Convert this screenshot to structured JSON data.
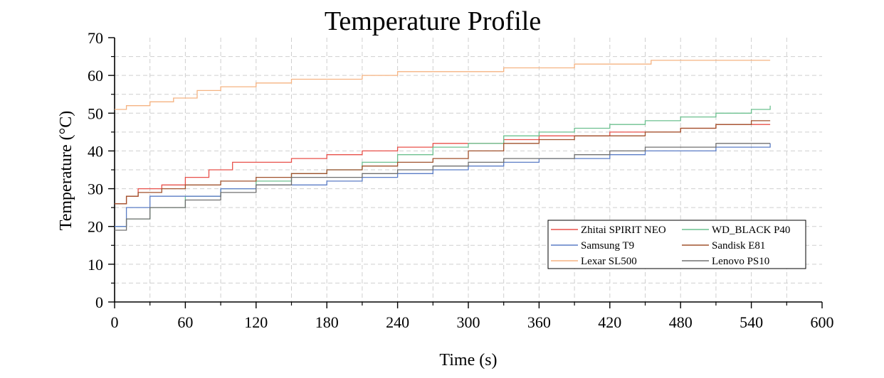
{
  "chart_data": {
    "type": "line",
    "title": "Temperature Profile",
    "xlabel": "Time (s)",
    "ylabel": "Temperature (°C)",
    "xlim": [
      0,
      600
    ],
    "ylim": [
      0,
      70
    ],
    "xticks": [
      0,
      60,
      120,
      180,
      240,
      300,
      360,
      420,
      480,
      540,
      600
    ],
    "yticks": [
      0,
      10,
      20,
      30,
      40,
      50,
      60,
      70
    ],
    "grid": true,
    "legend_position": "bottom-right",
    "series": [
      {
        "name": "Zhitai SPIRIT NEO",
        "color": "#e8504a",
        "x": [
          0,
          10,
          20,
          40,
          60,
          80,
          100,
          120,
          150,
          180,
          210,
          240,
          270,
          300,
          330,
          360,
          390,
          420,
          450,
          480,
          510,
          540,
          556
        ],
        "y": [
          26,
          28,
          30,
          31,
          33,
          35,
          37,
          37,
          38,
          39,
          40,
          41,
          42,
          42,
          43,
          44,
          44,
          45,
          45,
          46,
          47,
          47,
          47
        ]
      },
      {
        "name": "WD_BLACK P40",
        "color": "#6cc08f",
        "x": [
          0,
          10,
          30,
          60,
          90,
          120,
          150,
          180,
          210,
          240,
          270,
          300,
          330,
          360,
          390,
          420,
          450,
          480,
          510,
          540,
          556
        ],
        "y": [
          20,
          22,
          25,
          28,
          30,
          32,
          34,
          35,
          37,
          39,
          41,
          42,
          44,
          45,
          46,
          47,
          48,
          49,
          50,
          51,
          52
        ]
      },
      {
        "name": "Samsung T9",
        "color": "#5b7dc6",
        "x": [
          0,
          10,
          30,
          60,
          90,
          120,
          150,
          180,
          210,
          240,
          270,
          300,
          330,
          360,
          390,
          420,
          450,
          480,
          510,
          540,
          556
        ],
        "y": [
          20,
          25,
          28,
          28,
          30,
          31,
          31,
          32,
          33,
          34,
          35,
          36,
          37,
          38,
          38,
          39,
          40,
          40,
          41,
          41,
          42
        ]
      },
      {
        "name": "Sandisk E81",
        "color": "#a0522d",
        "x": [
          0,
          10,
          20,
          40,
          60,
          90,
          120,
          150,
          180,
          210,
          240,
          270,
          300,
          330,
          360,
          390,
          420,
          450,
          480,
          510,
          540,
          556
        ],
        "y": [
          26,
          28,
          29,
          30,
          31,
          32,
          33,
          34,
          35,
          36,
          37,
          38,
          40,
          42,
          43,
          44,
          44,
          45,
          46,
          47,
          48,
          48
        ]
      },
      {
        "name": "Lexar SL500",
        "color": "#f5b382",
        "x": [
          0,
          10,
          30,
          50,
          70,
          90,
          120,
          150,
          180,
          210,
          240,
          270,
          300,
          330,
          360,
          390,
          420,
          455,
          500,
          556
        ],
        "y": [
          51,
          52,
          53,
          54,
          56,
          57,
          58,
          59,
          59,
          60,
          61,
          61,
          61,
          62,
          62,
          63,
          63,
          64,
          64,
          64
        ]
      },
      {
        "name": "Lenovo PS10",
        "color": "#707070",
        "x": [
          0,
          10,
          30,
          60,
          90,
          120,
          150,
          180,
          210,
          240,
          270,
          300,
          330,
          360,
          390,
          420,
          450,
          480,
          510,
          540,
          556
        ],
        "y": [
          19,
          22,
          25,
          27,
          29,
          31,
          33,
          33,
          34,
          35,
          36,
          37,
          38,
          38,
          39,
          40,
          41,
          41,
          42,
          42,
          42
        ]
      }
    ]
  }
}
